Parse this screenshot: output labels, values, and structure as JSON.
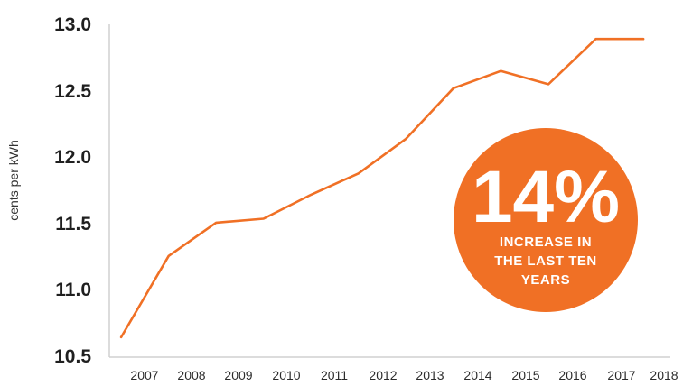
{
  "chart_data": {
    "type": "line",
    "ylabel": "cents per kWh",
    "xlabel": "",
    "ylim": [
      10.5,
      13.0
    ],
    "yticks": [
      "13.0",
      "12.5",
      "12.0",
      "11.5",
      "11.0",
      "10.5"
    ],
    "xticks": [
      "2007",
      "2008",
      "2009",
      "2010",
      "2011",
      "2012",
      "2013",
      "2014",
      "2015",
      "2016",
      "2017",
      "2018"
    ],
    "series": [
      {
        "x": [
          2006.5,
          2007.5,
          2008.5,
          2009.5,
          2010.5,
          2011.5,
          2012.5,
          2013.5,
          2014.5,
          2015.5,
          2016.5,
          2017.5
        ],
        "values": [
          10.65,
          11.26,
          11.51,
          11.54,
          11.72,
          11.88,
          12.14,
          12.52,
          12.65,
          12.55,
          12.89,
          12.89
        ]
      }
    ],
    "line_color": "#F07025",
    "axis_color": "#D0D0D0",
    "annotation": {
      "value": "14%",
      "lines": [
        "INCREASE IN",
        "THE LAST TEN",
        "YEARS"
      ],
      "color": "#F07025"
    }
  }
}
